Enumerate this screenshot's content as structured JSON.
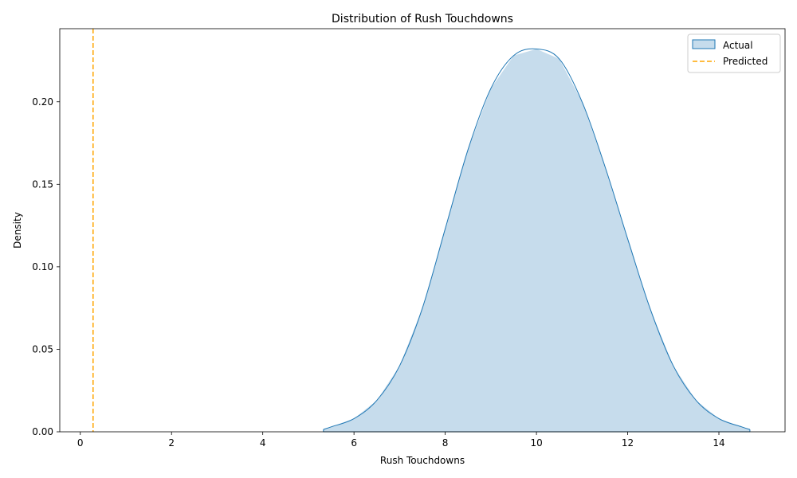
{
  "chart_data": {
    "type": "area",
    "title": "Distribution of Rush Touchdowns",
    "xlabel": "Rush Touchdowns",
    "ylabel": "Density",
    "xlim": [
      -0.45,
      15.45
    ],
    "ylim": [
      0,
      0.2443
    ],
    "xticks": [
      0,
      2,
      4,
      6,
      8,
      10,
      12,
      14
    ],
    "xtick_labels": [
      "0",
      "2",
      "4",
      "6",
      "8",
      "10",
      "12",
      "14"
    ],
    "yticks": [
      0,
      0.05,
      0.1,
      0.15,
      0.2
    ],
    "ytick_labels": [
      "0.00",
      "0.05",
      "0.10",
      "0.15",
      "0.20"
    ],
    "grid": false,
    "legend_position": "top-right",
    "series": [
      {
        "name": "Actual",
        "kind": "kde-area",
        "color": "#1f77b4",
        "fill": "#c6dcec",
        "x": [
          5.33,
          5.5,
          6.0,
          6.5,
          7.0,
          7.5,
          8.0,
          8.5,
          9.0,
          9.5,
          10.0,
          10.5,
          11.0,
          11.5,
          12.0,
          12.5,
          13.0,
          13.5,
          14.0,
          14.5,
          14.68
        ],
        "y": [
          0.0014,
          0.003,
          0.008,
          0.019,
          0.04,
          0.075,
          0.123,
          0.171,
          0.208,
          0.228,
          0.232,
          0.226,
          0.2,
          0.161,
          0.117,
          0.074,
          0.04,
          0.019,
          0.008,
          0.003,
          0.0014
        ]
      },
      {
        "name": "Predicted",
        "kind": "vline",
        "color": "#ffa500",
        "x": 0.28
      }
    ]
  }
}
